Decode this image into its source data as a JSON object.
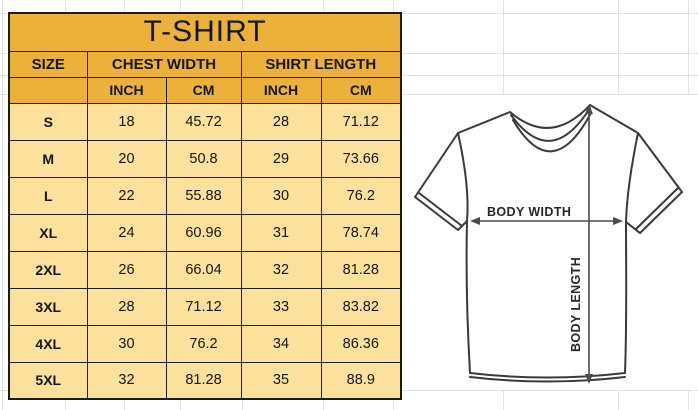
{
  "title": "T-SHIRT",
  "table": {
    "size_header": "SIZE",
    "groups": [
      {
        "label": "CHEST WIDTH",
        "units": [
          "INCH",
          "CM"
        ]
      },
      {
        "label": "SHIRT LENGTH",
        "units": [
          "INCH",
          "CM"
        ]
      }
    ],
    "rows": [
      {
        "size": "S",
        "cells": [
          "18",
          "45.72",
          "28",
          "71.12"
        ]
      },
      {
        "size": "M",
        "cells": [
          "20",
          "50.8",
          "29",
          "73.66"
        ]
      },
      {
        "size": "L",
        "cells": [
          "22",
          "55.88",
          "30",
          "76.2"
        ]
      },
      {
        "size": "XL",
        "cells": [
          "24",
          "60.96",
          "31",
          "78.74"
        ]
      },
      {
        "size": "2XL",
        "cells": [
          "26",
          "66.04",
          "32",
          "81.28"
        ]
      },
      {
        "size": "3XL",
        "cells": [
          "28",
          "71.12",
          "33",
          "83.82"
        ]
      },
      {
        "size": "4XL",
        "cells": [
          "30",
          "76.2",
          "34",
          "86.36"
        ]
      },
      {
        "size": "5XL",
        "cells": [
          "32",
          "81.28",
          "35",
          "88.9"
        ]
      }
    ]
  },
  "diagram": {
    "body_width_label": "BODY WIDTH",
    "body_length_label": "BODY LENGTH"
  },
  "colors": {
    "header_gold": "#EBB13A",
    "row_yellow": "#FBE19B",
    "border": "#1c1c1c",
    "gridline": "#dfe3e8",
    "line_art": "#3a3a3a",
    "arrow": "#4a4a4a"
  },
  "chart_data": {
    "type": "table",
    "title": "T-SHIRT",
    "columns": [
      "SIZE",
      "CHEST WIDTH INCH",
      "CHEST WIDTH CM",
      "SHIRT LENGTH INCH",
      "SHIRT LENGTH CM"
    ],
    "rows": [
      [
        "S",
        18,
        45.72,
        28,
        71.12
      ],
      [
        "M",
        20,
        50.8,
        29,
        73.66
      ],
      [
        "L",
        22,
        55.88,
        30,
        76.2
      ],
      [
        "XL",
        24,
        60.96,
        31,
        78.74
      ],
      [
        "2XL",
        26,
        66.04,
        32,
        81.28
      ],
      [
        "3XL",
        28,
        71.12,
        33,
        83.82
      ],
      [
        "4XL",
        30,
        76.2,
        34,
        86.36
      ],
      [
        "5XL",
        32,
        81.28,
        35,
        88.9
      ]
    ]
  }
}
